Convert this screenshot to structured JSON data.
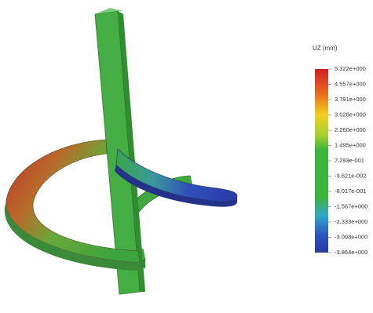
{
  "legend": {
    "title": "UZ (mm)",
    "labels": [
      "5.322e+000",
      "4.557e+000",
      "3.791e+000",
      "3.026e+000",
      "2.260e+000",
      "1.495e+000",
      "7.293e-001",
      "-3.621e-002",
      "-8.017e-001",
      "-1.567e+000",
      "-2.333e+000",
      "-3.098e+000",
      "-3.864e+000"
    ]
  }
}
